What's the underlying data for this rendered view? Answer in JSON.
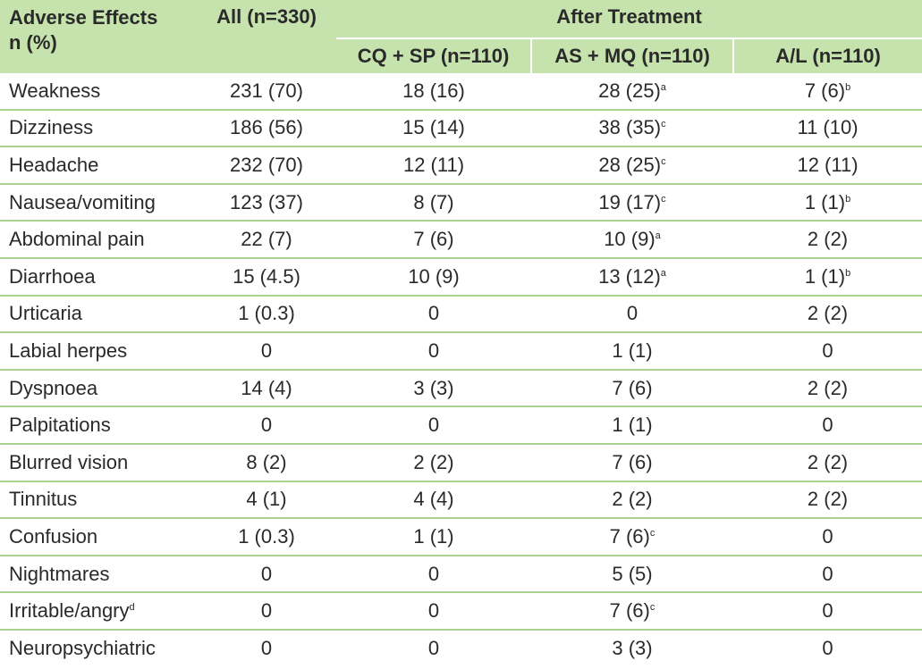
{
  "header": {
    "adverse_effects_line1": "Adverse Effects",
    "adverse_effects_line2": "n (%)",
    "all": "All (n=330)",
    "after_treatment": "After Treatment",
    "groups": [
      "CQ + SP (n=110)",
      "AS + MQ (n=110)",
      "A/L (n=110)"
    ]
  },
  "header_color": "#c7e3ad",
  "rule_color": "#a9d18e",
  "rows": [
    {
      "name": "Weakness",
      "name_sup": "",
      "all": "231 (70)",
      "cqsp": "18 (16)",
      "asmq": "28 (25)",
      "asmq_sup": "a",
      "al": "7 (6)",
      "al_sup": "b"
    },
    {
      "name": "Dizziness",
      "name_sup": "",
      "all": "186 (56)",
      "cqsp": "15 (14)",
      "asmq": "38 (35)",
      "asmq_sup": "c",
      "al": "11 (10)",
      "al_sup": ""
    },
    {
      "name": "Headache",
      "name_sup": "",
      "all": "232 (70)",
      "cqsp": "12 (11)",
      "asmq": "28 (25)",
      "asmq_sup": "c",
      "al": "12 (11)",
      "al_sup": ""
    },
    {
      "name": "Nausea/vomiting",
      "name_sup": "",
      "all": "123 (37)",
      "cqsp": "8 (7)",
      "asmq": "19 (17)",
      "asmq_sup": "c",
      "al": "1 (1)",
      "al_sup": "b"
    },
    {
      "name": "Abdominal pain",
      "name_sup": "",
      "all": "22 (7)",
      "cqsp": "7 (6)",
      "asmq": "10 (9)",
      "asmq_sup": "a",
      "al": "2 (2)",
      "al_sup": ""
    },
    {
      "name": "Diarrhoea",
      "name_sup": "",
      "all": "15 (4.5)",
      "cqsp": "10 (9)",
      "asmq": "13 (12)",
      "asmq_sup": "a",
      "al": "1 (1)",
      "al_sup": "b"
    },
    {
      "name": "Urticaria",
      "name_sup": "",
      "all": "1 (0.3)",
      "cqsp": "0",
      "asmq": "0",
      "asmq_sup": "",
      "al": "2 (2)",
      "al_sup": ""
    },
    {
      "name": "Labial herpes",
      "name_sup": "",
      "all": "0",
      "cqsp": "0",
      "asmq": "1 (1)",
      "asmq_sup": "",
      "al": "0",
      "al_sup": ""
    },
    {
      "name": "Dyspnoea",
      "name_sup": "",
      "all": "14 (4)",
      "cqsp": "3 (3)",
      "asmq": "7 (6)",
      "asmq_sup": "",
      "al": "2 (2)",
      "al_sup": ""
    },
    {
      "name": "Palpitations",
      "name_sup": "",
      "all": "0",
      "cqsp": "0",
      "asmq": "1 (1)",
      "asmq_sup": "",
      "al": "0",
      "al_sup": ""
    },
    {
      "name": "Blurred vision",
      "name_sup": "",
      "all": "8 (2)",
      "cqsp": "2 (2)",
      "asmq": "7 (6)",
      "asmq_sup": "",
      "al": "2 (2)",
      "al_sup": ""
    },
    {
      "name": "Tinnitus",
      "name_sup": "",
      "all": "4 (1)",
      "cqsp": "4 (4)",
      "asmq": "2 (2)",
      "asmq_sup": "",
      "al": "2 (2)",
      "al_sup": ""
    },
    {
      "name": "Confusion",
      "name_sup": "",
      "all": "1 (0.3)",
      "cqsp": "1 (1)",
      "asmq": "7 (6)",
      "asmq_sup": "c",
      "al": "0",
      "al_sup": ""
    },
    {
      "name": "Nightmares",
      "name_sup": "",
      "all": "0",
      "cqsp": "0",
      "asmq": "5 (5)",
      "asmq_sup": "",
      "al": "0",
      "al_sup": ""
    },
    {
      "name": "Irritable/angry",
      "name_sup": "d",
      "all": "0",
      "cqsp": "0",
      "asmq": "7 (6)",
      "asmq_sup": "c",
      "al": "0",
      "al_sup": ""
    },
    {
      "name": "Neuropsychiatric",
      "name_sup": "",
      "all": "0",
      "cqsp": "0",
      "asmq": "3 (3)",
      "asmq_sup": "",
      "al": "0",
      "al_sup": ""
    }
  ]
}
